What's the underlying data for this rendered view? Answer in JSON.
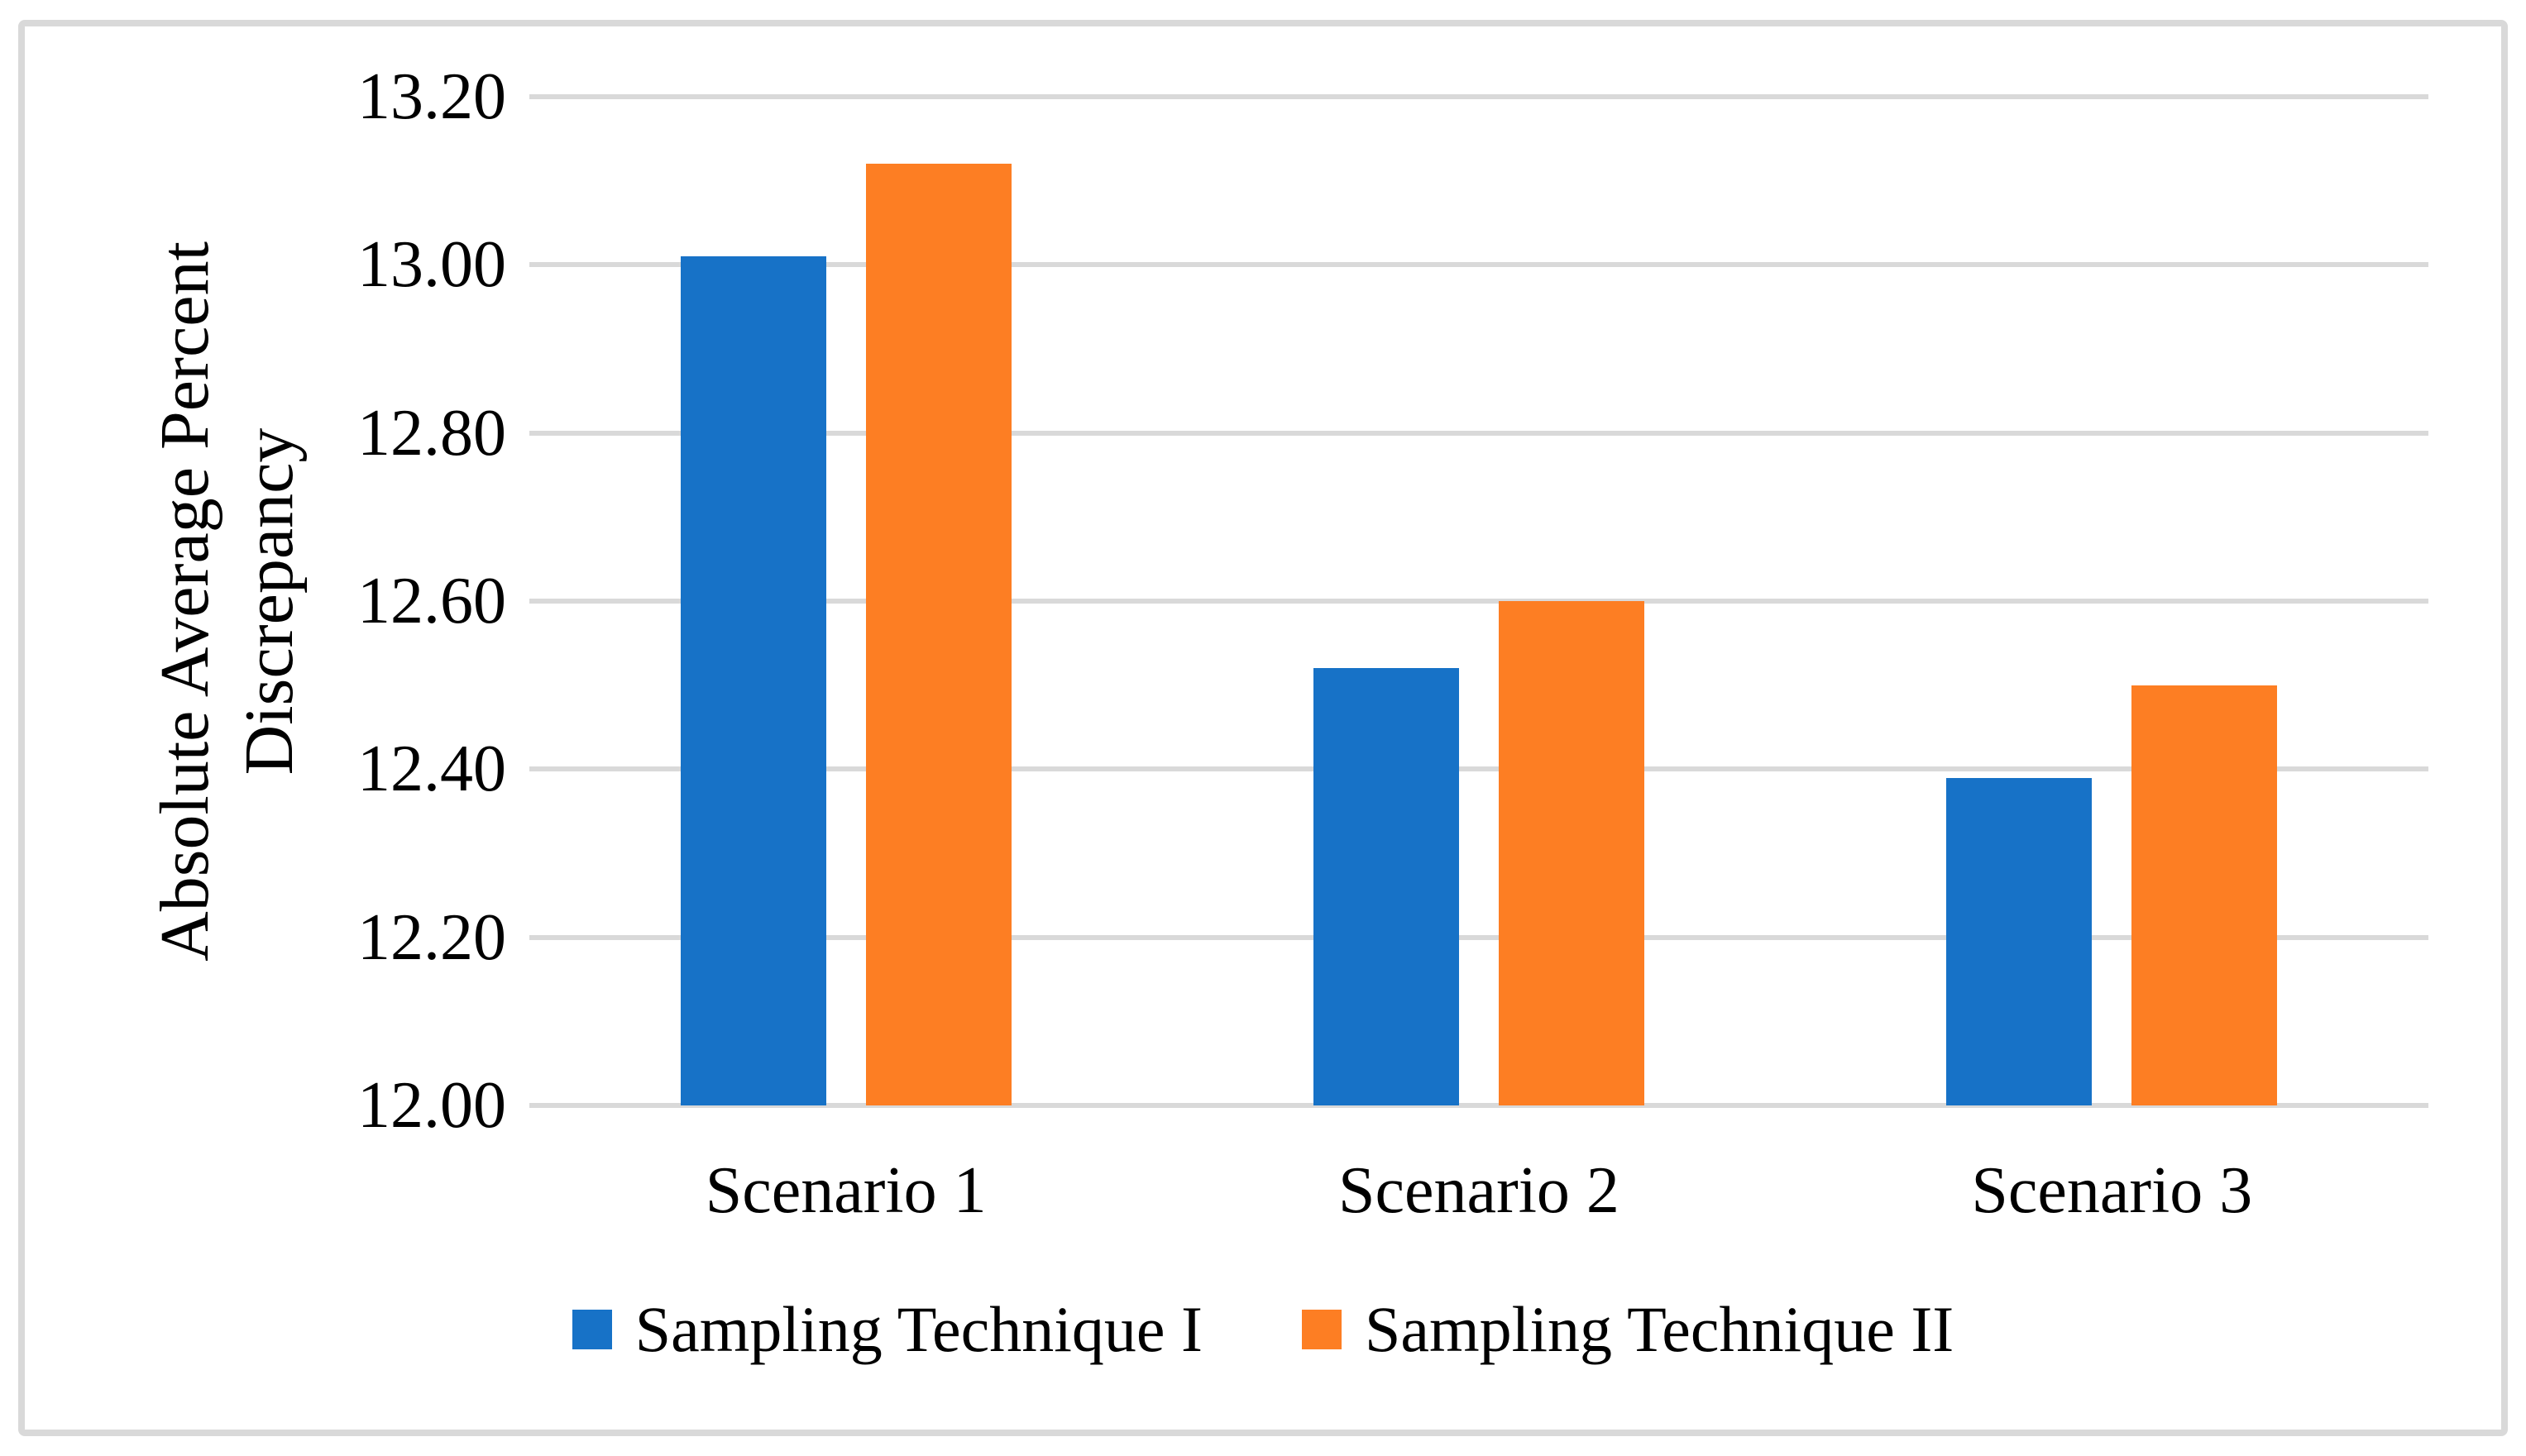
{
  "figure": {
    "kind": "journal-style bar chart figure",
    "background": "#ffffff"
  },
  "colors": {
    "series1_blue": "#1772c7",
    "series2_orange": "#fd7e23",
    "gridline": "#d9d9d9",
    "frame_border": "#d9d9d9",
    "text": "#000000"
  },
  "chart_data": {
    "type": "bar",
    "title": "",
    "categories": [
      "Scenario 1",
      "Scenario 2",
      "Scenario 3"
    ],
    "series": [
      {
        "name": "Sampling Technique I",
        "color": "#1772c7",
        "values": [
          13.01,
          12.52,
          12.39
        ]
      },
      {
        "name": "Sampling Technique II",
        "color": "#fd7e23",
        "values": [
          13.12,
          12.6,
          12.5
        ]
      }
    ],
    "ylabel_lines": [
      "Absolute Average Percent",
      "Discrepancy"
    ],
    "xlabel": "",
    "ylim": [
      12.0,
      13.2
    ],
    "yticks": [
      {
        "label": "12.00",
        "value": 12.0
      },
      {
        "label": "12.20",
        "value": 12.2
      },
      {
        "label": "12.40",
        "value": 12.4
      },
      {
        "label": "12.60",
        "value": 12.6
      },
      {
        "label": "12.80",
        "value": 12.8
      },
      {
        "label": "13.00",
        "value": 13.0
      },
      {
        "label": "13.20",
        "value": 13.2
      }
    ],
    "grid": true,
    "legend_position": "bottom-center"
  }
}
